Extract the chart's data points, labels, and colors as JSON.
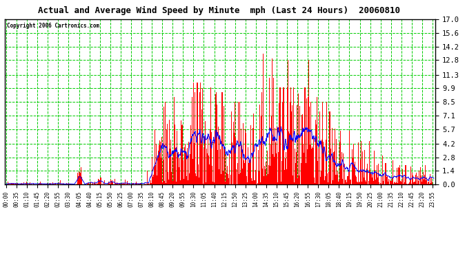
{
  "title": "Actual and Average Wind Speed by Minute  mph (Last 24 Hours)  20060810",
  "copyright": "Copyright 2006 Cartronics.com",
  "background_color": "#ffffff",
  "plot_bg_color": "#ffffff",
  "grid_color_major": "#00cc00",
  "grid_color_minor": "#888888",
  "bar_color": "#ff0000",
  "line_color": "#0000ff",
  "yticks": [
    0.0,
    1.4,
    2.8,
    4.2,
    5.7,
    7.1,
    8.5,
    9.9,
    11.3,
    12.8,
    14.2,
    15.6,
    17.0
  ],
  "ylim": [
    0,
    17.0
  ],
  "n_minutes": 1440,
  "xtick_labels": [
    "00:00",
    "00:35",
    "01:10",
    "01:45",
    "02:20",
    "02:55",
    "03:30",
    "04:05",
    "04:40",
    "05:15",
    "05:50",
    "06:25",
    "07:00",
    "07:35",
    "08:10",
    "08:45",
    "09:20",
    "09:55",
    "10:30",
    "11:05",
    "11:40",
    "12:15",
    "12:50",
    "13:25",
    "14:00",
    "14:35",
    "15:10",
    "15:45",
    "16:20",
    "16:55",
    "17:30",
    "18:05",
    "18:40",
    "19:15",
    "19:50",
    "20:25",
    "21:00",
    "21:35",
    "22:10",
    "22:45",
    "23:20",
    "23:55"
  ],
  "xtick_positions": [
    0,
    35,
    70,
    105,
    140,
    175,
    210,
    245,
    280,
    315,
    350,
    385,
    420,
    455,
    490,
    525,
    560,
    595,
    630,
    665,
    700,
    735,
    770,
    805,
    840,
    875,
    910,
    945,
    980,
    1015,
    1050,
    1085,
    1120,
    1155,
    1190,
    1225,
    1260,
    1295,
    1330,
    1365,
    1400,
    1435
  ]
}
